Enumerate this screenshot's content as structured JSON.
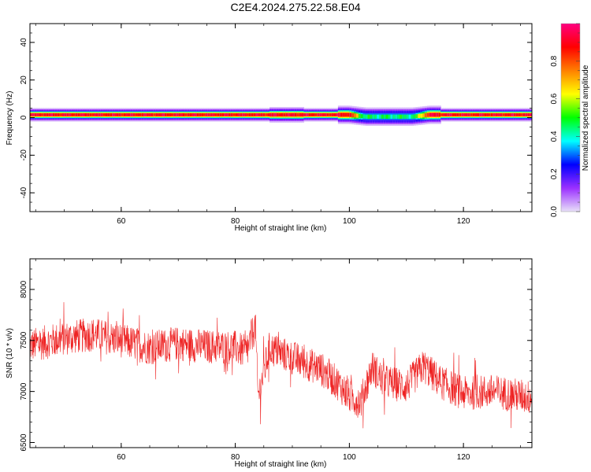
{
  "title": "C2E4.2024.275.22.58.E04",
  "chart_data": [
    {
      "type": "heatmap",
      "xlabel": "Height of straight line (km)",
      "ylabel": "Frequency (Hz)",
      "xlim": [
        44,
        132
      ],
      "ylim": [
        -50,
        50
      ],
      "xticks": [
        "60",
        "80",
        "100",
        "120"
      ],
      "yticks": [
        "40",
        "20",
        "0",
        "-20",
        "-40"
      ],
      "colorbar": {
        "label": "Normalized spectral amplitude",
        "range": [
          0,
          1
        ],
        "ticks": [
          "0.0",
          "0.2",
          "0.4",
          "0.6",
          "0.8"
        ],
        "colors": [
          "#e8e0f8",
          "#9b30ff",
          "#0000ff",
          "#00ffff",
          "#00ff00",
          "#ffff00",
          "#ff8000",
          "#ff0000",
          "#ff0080"
        ]
      },
      "band": {
        "center_freq_hz": 1.5,
        "dip_range_km": [
          100,
          114
        ],
        "dip_center_freq_hz": 0.5,
        "peak_amplitude": 0.9,
        "dip_amplitude": 0.45
      }
    },
    {
      "type": "line",
      "xlabel": "Height of straight line (km)",
      "ylabel": "SNR (10 * v/v)",
      "xlim": [
        44,
        132
      ],
      "ylim": [
        6450,
        8300
      ],
      "xticks": [
        "60",
        "80",
        "100",
        "120"
      ],
      "yticks": [
        "8000",
        "7500",
        "7000",
        "6500"
      ],
      "color": "#ee2222",
      "trend": [
        {
          "x": 44,
          "y": 7450
        },
        {
          "x": 50,
          "y": 7520
        },
        {
          "x": 55,
          "y": 7560
        },
        {
          "x": 60,
          "y": 7500
        },
        {
          "x": 65,
          "y": 7430
        },
        {
          "x": 70,
          "y": 7470
        },
        {
          "x": 75,
          "y": 7440
        },
        {
          "x": 80,
          "y": 7430
        },
        {
          "x": 82,
          "y": 7380
        },
        {
          "x": 83.5,
          "y": 7650
        },
        {
          "x": 84,
          "y": 6950
        },
        {
          "x": 86,
          "y": 7420
        },
        {
          "x": 90,
          "y": 7330
        },
        {
          "x": 95,
          "y": 7220
        },
        {
          "x": 98,
          "y": 7080
        },
        {
          "x": 100,
          "y": 6950
        },
        {
          "x": 102,
          "y": 6900
        },
        {
          "x": 104,
          "y": 7240
        },
        {
          "x": 106,
          "y": 7100
        },
        {
          "x": 110,
          "y": 7050
        },
        {
          "x": 113,
          "y": 7250
        },
        {
          "x": 116,
          "y": 7090
        },
        {
          "x": 120,
          "y": 6980
        },
        {
          "x": 125,
          "y": 7000
        },
        {
          "x": 132,
          "y": 6940
        }
      ],
      "noise_amplitude": 170
    }
  ]
}
